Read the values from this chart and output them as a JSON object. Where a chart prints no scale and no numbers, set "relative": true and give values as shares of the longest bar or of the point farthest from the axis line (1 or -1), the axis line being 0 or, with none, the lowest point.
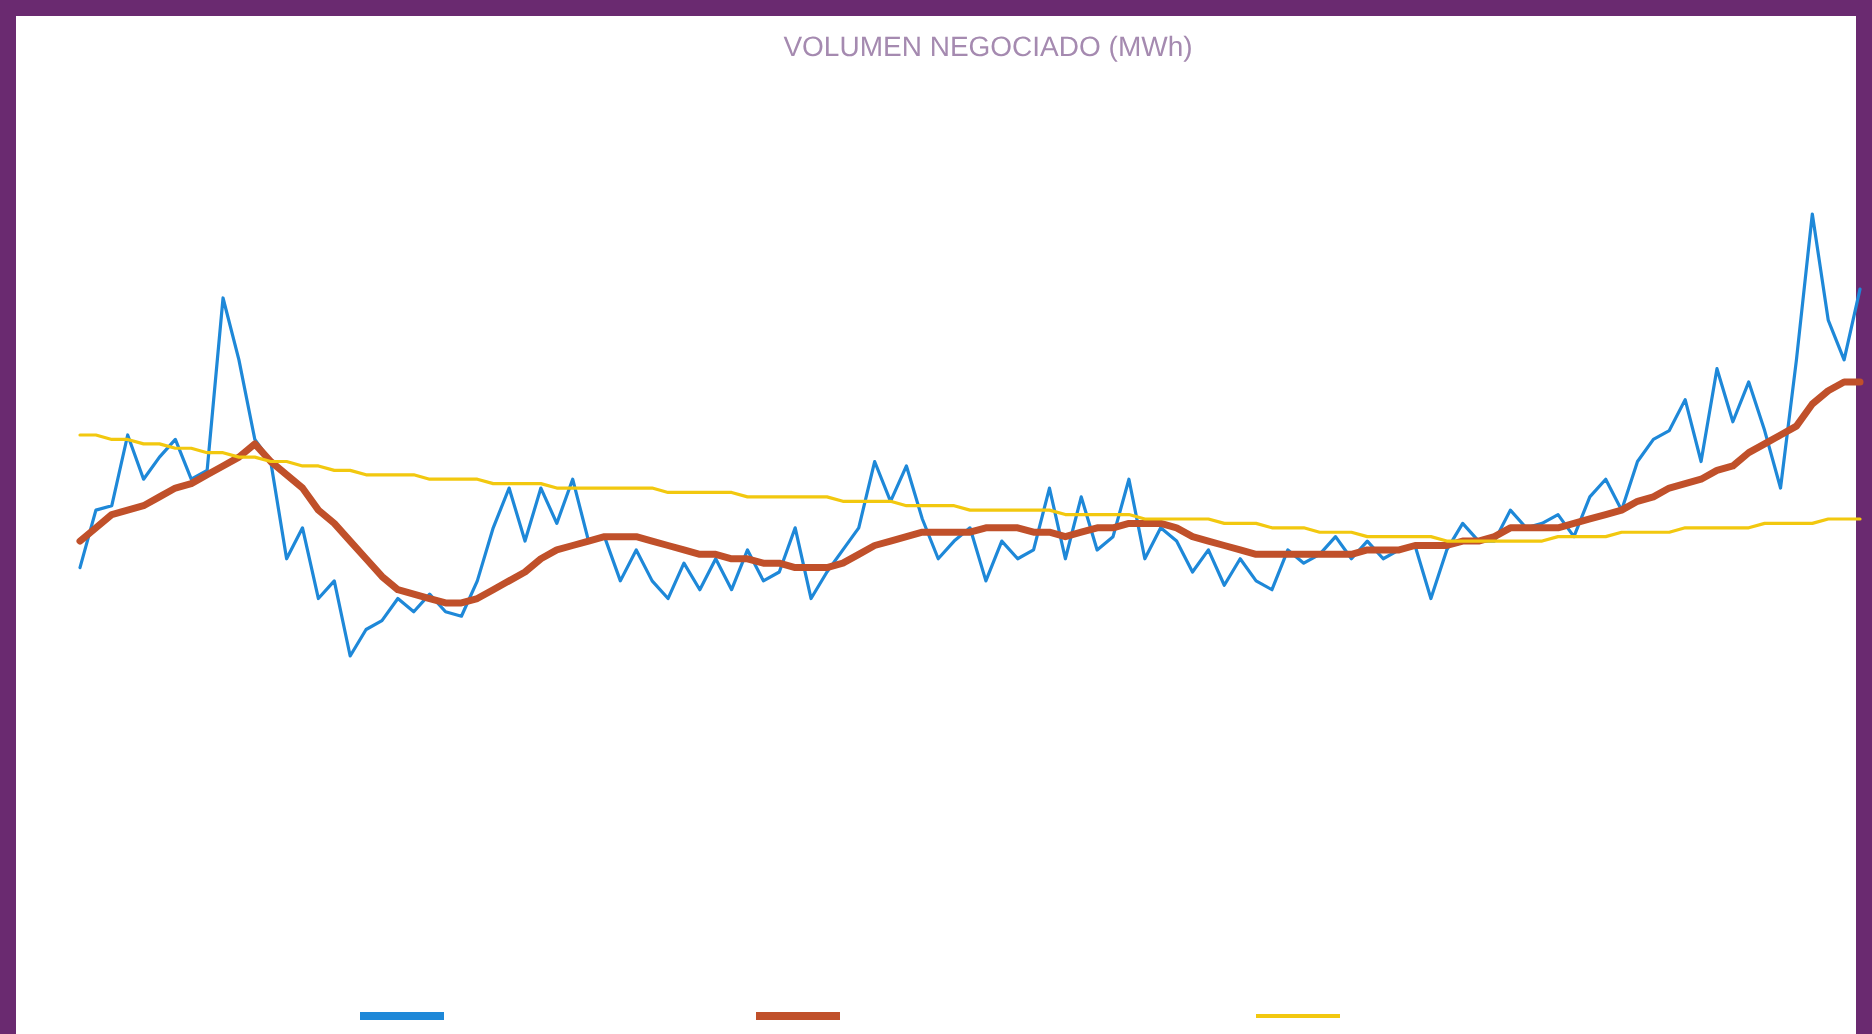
{
  "chart_data": {
    "type": "line",
    "title": "VOLUMEN NEGOCIADO (MWh)",
    "relative": true,
    "marker": "none",
    "line_style": "solid",
    "categories": [
      null,
      null,
      null,
      null,
      null,
      null,
      null,
      null,
      null,
      null,
      null,
      null,
      null,
      null,
      null,
      null,
      null,
      null,
      null,
      null,
      null,
      null,
      null,
      null,
      null,
      null,
      null,
      null,
      null,
      null,
      null,
      null,
      null,
      null,
      null,
      null,
      null,
      null,
      null,
      null,
      null,
      null,
      null,
      null,
      null,
      null,
      null,
      null,
      null,
      null,
      null,
      null,
      null,
      null,
      null,
      null,
      null,
      null,
      null,
      null,
      null,
      null,
      null,
      null,
      null,
      null,
      null,
      null,
      null,
      null,
      null,
      null,
      null,
      null,
      null,
      null,
      null,
      null,
      null,
      null,
      null,
      null,
      null,
      null,
      null,
      null,
      null,
      null,
      null,
      null,
      null,
      null,
      null,
      null,
      null,
      null,
      null,
      null,
      null,
      null,
      null,
      null,
      null,
      null,
      null,
      null,
      null,
      null,
      null,
      null,
      null,
      null,
      null
    ],
    "series": [
      {
        "color": "#1e88d8",
        "values": [
          0.2,
          0.33,
          0.34,
          0.5,
          0.4,
          0.45,
          0.49,
          0.4,
          0.42,
          0.81,
          0.67,
          0.49,
          0.44,
          0.22,
          0.29,
          0.13,
          0.17,
          0.0,
          0.06,
          0.08,
          0.13,
          0.1,
          0.14,
          0.1,
          0.09,
          0.17,
          0.29,
          0.38,
          0.26,
          0.38,
          0.3,
          0.4,
          0.26,
          0.27,
          0.17,
          0.24,
          0.17,
          0.13,
          0.21,
          0.15,
          0.22,
          0.15,
          0.24,
          0.17,
          0.19,
          0.29,
          0.13,
          0.19,
          0.24,
          0.29,
          0.44,
          0.35,
          0.43,
          0.31,
          0.22,
          0.26,
          0.29,
          0.17,
          0.26,
          0.22,
          0.24,
          0.38,
          0.22,
          0.36,
          0.24,
          0.27,
          0.4,
          0.22,
          0.29,
          0.26,
          0.19,
          0.24,
          0.16,
          0.22,
          0.17,
          0.15,
          0.24,
          0.21,
          0.23,
          0.27,
          0.22,
          0.26,
          0.22,
          0.24,
          0.25,
          0.13,
          0.24,
          0.3,
          0.26,
          0.26,
          0.33,
          0.29,
          0.3,
          0.32,
          0.27,
          0.36,
          0.4,
          0.33,
          0.44,
          0.49,
          0.51,
          0.58,
          0.44,
          0.65,
          0.53,
          0.62,
          0.51,
          0.38,
          0.67,
          1.0,
          0.76,
          0.67,
          0.83
        ]
      },
      {
        "color": "#c0502a",
        "values": [
          0.26,
          0.29,
          0.32,
          0.33,
          0.34,
          0.36,
          0.38,
          0.39,
          0.41,
          0.43,
          0.45,
          0.48,
          0.44,
          0.41,
          0.38,
          0.33,
          0.3,
          0.26,
          0.22,
          0.18,
          0.15,
          0.14,
          0.13,
          0.12,
          0.12,
          0.13,
          0.15,
          0.17,
          0.19,
          0.22,
          0.24,
          0.25,
          0.26,
          0.27,
          0.27,
          0.27,
          0.26,
          0.25,
          0.24,
          0.23,
          0.23,
          0.22,
          0.22,
          0.21,
          0.21,
          0.2,
          0.2,
          0.2,
          0.21,
          0.23,
          0.25,
          0.26,
          0.27,
          0.28,
          0.28,
          0.28,
          0.28,
          0.29,
          0.29,
          0.29,
          0.28,
          0.28,
          0.27,
          0.28,
          0.29,
          0.29,
          0.3,
          0.3,
          0.3,
          0.29,
          0.27,
          0.26,
          0.25,
          0.24,
          0.23,
          0.23,
          0.23,
          0.23,
          0.23,
          0.23,
          0.23,
          0.24,
          0.24,
          0.24,
          0.25,
          0.25,
          0.25,
          0.26,
          0.26,
          0.27,
          0.29,
          0.29,
          0.29,
          0.29,
          0.3,
          0.31,
          0.32,
          0.33,
          0.35,
          0.36,
          0.38,
          0.39,
          0.4,
          0.42,
          0.43,
          0.46,
          0.48,
          0.5,
          0.52,
          0.57,
          0.6,
          0.62,
          0.62
        ]
      },
      {
        "color": "#f2c80f",
        "values": [
          0.5,
          0.5,
          0.49,
          0.49,
          0.48,
          0.48,
          0.47,
          0.47,
          0.46,
          0.46,
          0.45,
          0.45,
          0.44,
          0.44,
          0.43,
          0.43,
          0.42,
          0.42,
          0.41,
          0.41,
          0.41,
          0.41,
          0.4,
          0.4,
          0.4,
          0.4,
          0.39,
          0.39,
          0.39,
          0.39,
          0.38,
          0.38,
          0.38,
          0.38,
          0.38,
          0.38,
          0.38,
          0.37,
          0.37,
          0.37,
          0.37,
          0.37,
          0.36,
          0.36,
          0.36,
          0.36,
          0.36,
          0.36,
          0.35,
          0.35,
          0.35,
          0.35,
          0.34,
          0.34,
          0.34,
          0.34,
          0.33,
          0.33,
          0.33,
          0.33,
          0.33,
          0.33,
          0.32,
          0.32,
          0.32,
          0.32,
          0.32,
          0.31,
          0.31,
          0.31,
          0.31,
          0.31,
          0.3,
          0.3,
          0.3,
          0.29,
          0.29,
          0.29,
          0.28,
          0.28,
          0.28,
          0.27,
          0.27,
          0.27,
          0.27,
          0.27,
          0.26,
          0.26,
          0.26,
          0.26,
          0.26,
          0.26,
          0.26,
          0.27,
          0.27,
          0.27,
          0.27,
          0.28,
          0.28,
          0.28,
          0.28,
          0.29,
          0.29,
          0.29,
          0.29,
          0.29,
          0.3,
          0.3,
          0.3,
          0.3,
          0.31,
          0.31,
          0.31
        ]
      }
    ]
  }
}
